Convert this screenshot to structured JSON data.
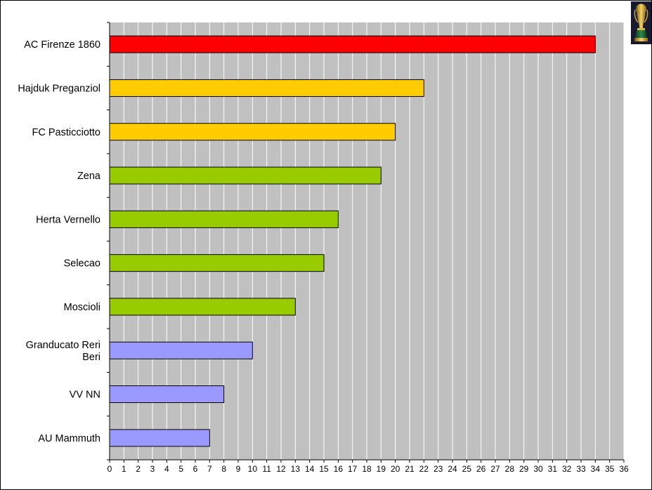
{
  "chart_data": {
    "type": "bar",
    "orientation": "horizontal",
    "categories": [
      "AC Firenze 1860",
      "Hajduk Preganziol",
      "FC Pasticciotto",
      "Zena",
      "Herta Vernello",
      "Selecao",
      "Moscioli",
      "Granducato Reri Beri",
      "VV NN",
      "AU Mammuth"
    ],
    "category_lines": [
      [
        "AC Firenze 1860"
      ],
      [
        "Hajduk Preganziol"
      ],
      [
        "FC Pasticciotto"
      ],
      [
        "Zena"
      ],
      [
        "Herta Vernello"
      ],
      [
        "Selecao"
      ],
      [
        "Moscioli"
      ],
      [
        "Granducato Reri",
        "Beri"
      ],
      [
        "VV NN"
      ],
      [
        "AU Mammuth"
      ]
    ],
    "values": [
      34,
      22,
      20,
      19,
      16,
      15,
      13,
      10,
      8,
      7
    ],
    "bar_colors": [
      "#ff0000",
      "#ffcc00",
      "#ffcc00",
      "#99cc00",
      "#99cc00",
      "#99cc00",
      "#99cc00",
      "#9999ff",
      "#9999ff",
      "#9999ff"
    ],
    "xlim": [
      0,
      36
    ],
    "xticks": [
      0,
      1,
      2,
      3,
      4,
      5,
      6,
      7,
      8,
      9,
      10,
      11,
      12,
      13,
      14,
      15,
      16,
      17,
      18,
      19,
      20,
      21,
      22,
      23,
      24,
      25,
      26,
      27,
      28,
      29,
      30,
      31,
      32,
      33,
      34,
      35,
      36
    ],
    "grid": true,
    "plot_background": "#c0c0c0",
    "grid_color": "#ffffff",
    "title": "",
    "xlabel": "",
    "ylabel": ""
  },
  "decoration": {
    "trophy_icon": "world-cup-trophy-icon"
  }
}
